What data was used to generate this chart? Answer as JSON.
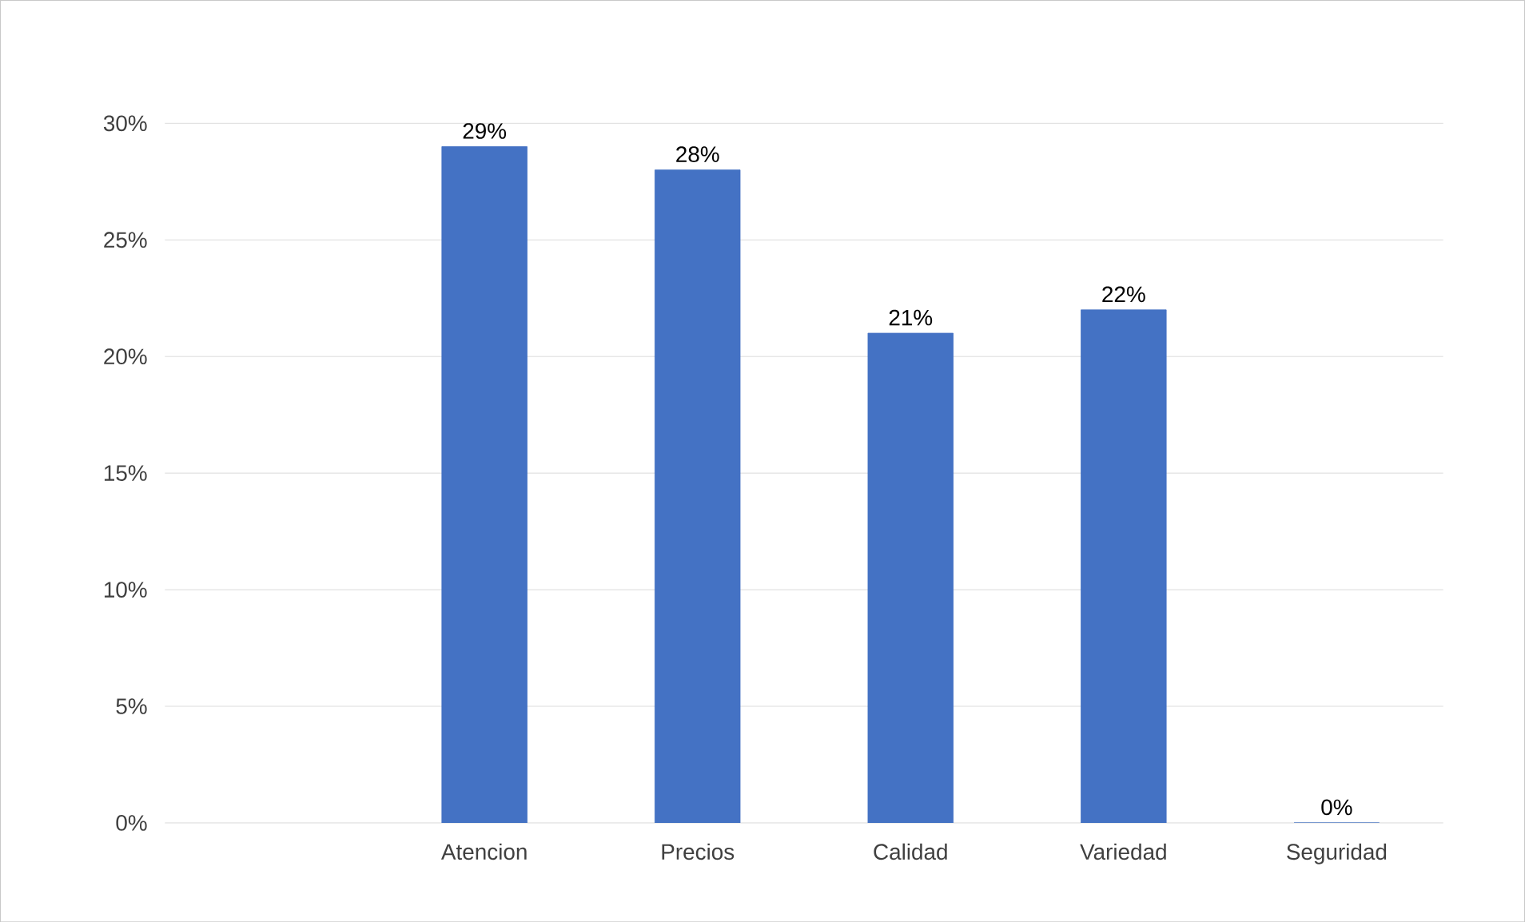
{
  "chart_data": {
    "type": "bar",
    "categories": [
      null,
      "Atencion",
      "Precios",
      "Calidad",
      "Variedad",
      "Seguridad"
    ],
    "values": [
      null,
      29,
      28,
      21,
      22,
      0
    ],
    "value_labels": [
      null,
      "29%",
      "28%",
      "21%",
      "22%",
      "0%"
    ],
    "color": "#4472c4",
    "ylim": [
      0,
      30
    ],
    "yticks": [
      {
        "value": 0,
        "label": "0%"
      },
      {
        "value": 5,
        "label": "5%"
      },
      {
        "value": 10,
        "label": "10%"
      },
      {
        "value": 15,
        "label": "15%"
      },
      {
        "value": 20,
        "label": "20%"
      },
      {
        "value": 25,
        "label": "25%"
      },
      {
        "value": 30,
        "label": "30%"
      }
    ],
    "grid": "y"
  }
}
